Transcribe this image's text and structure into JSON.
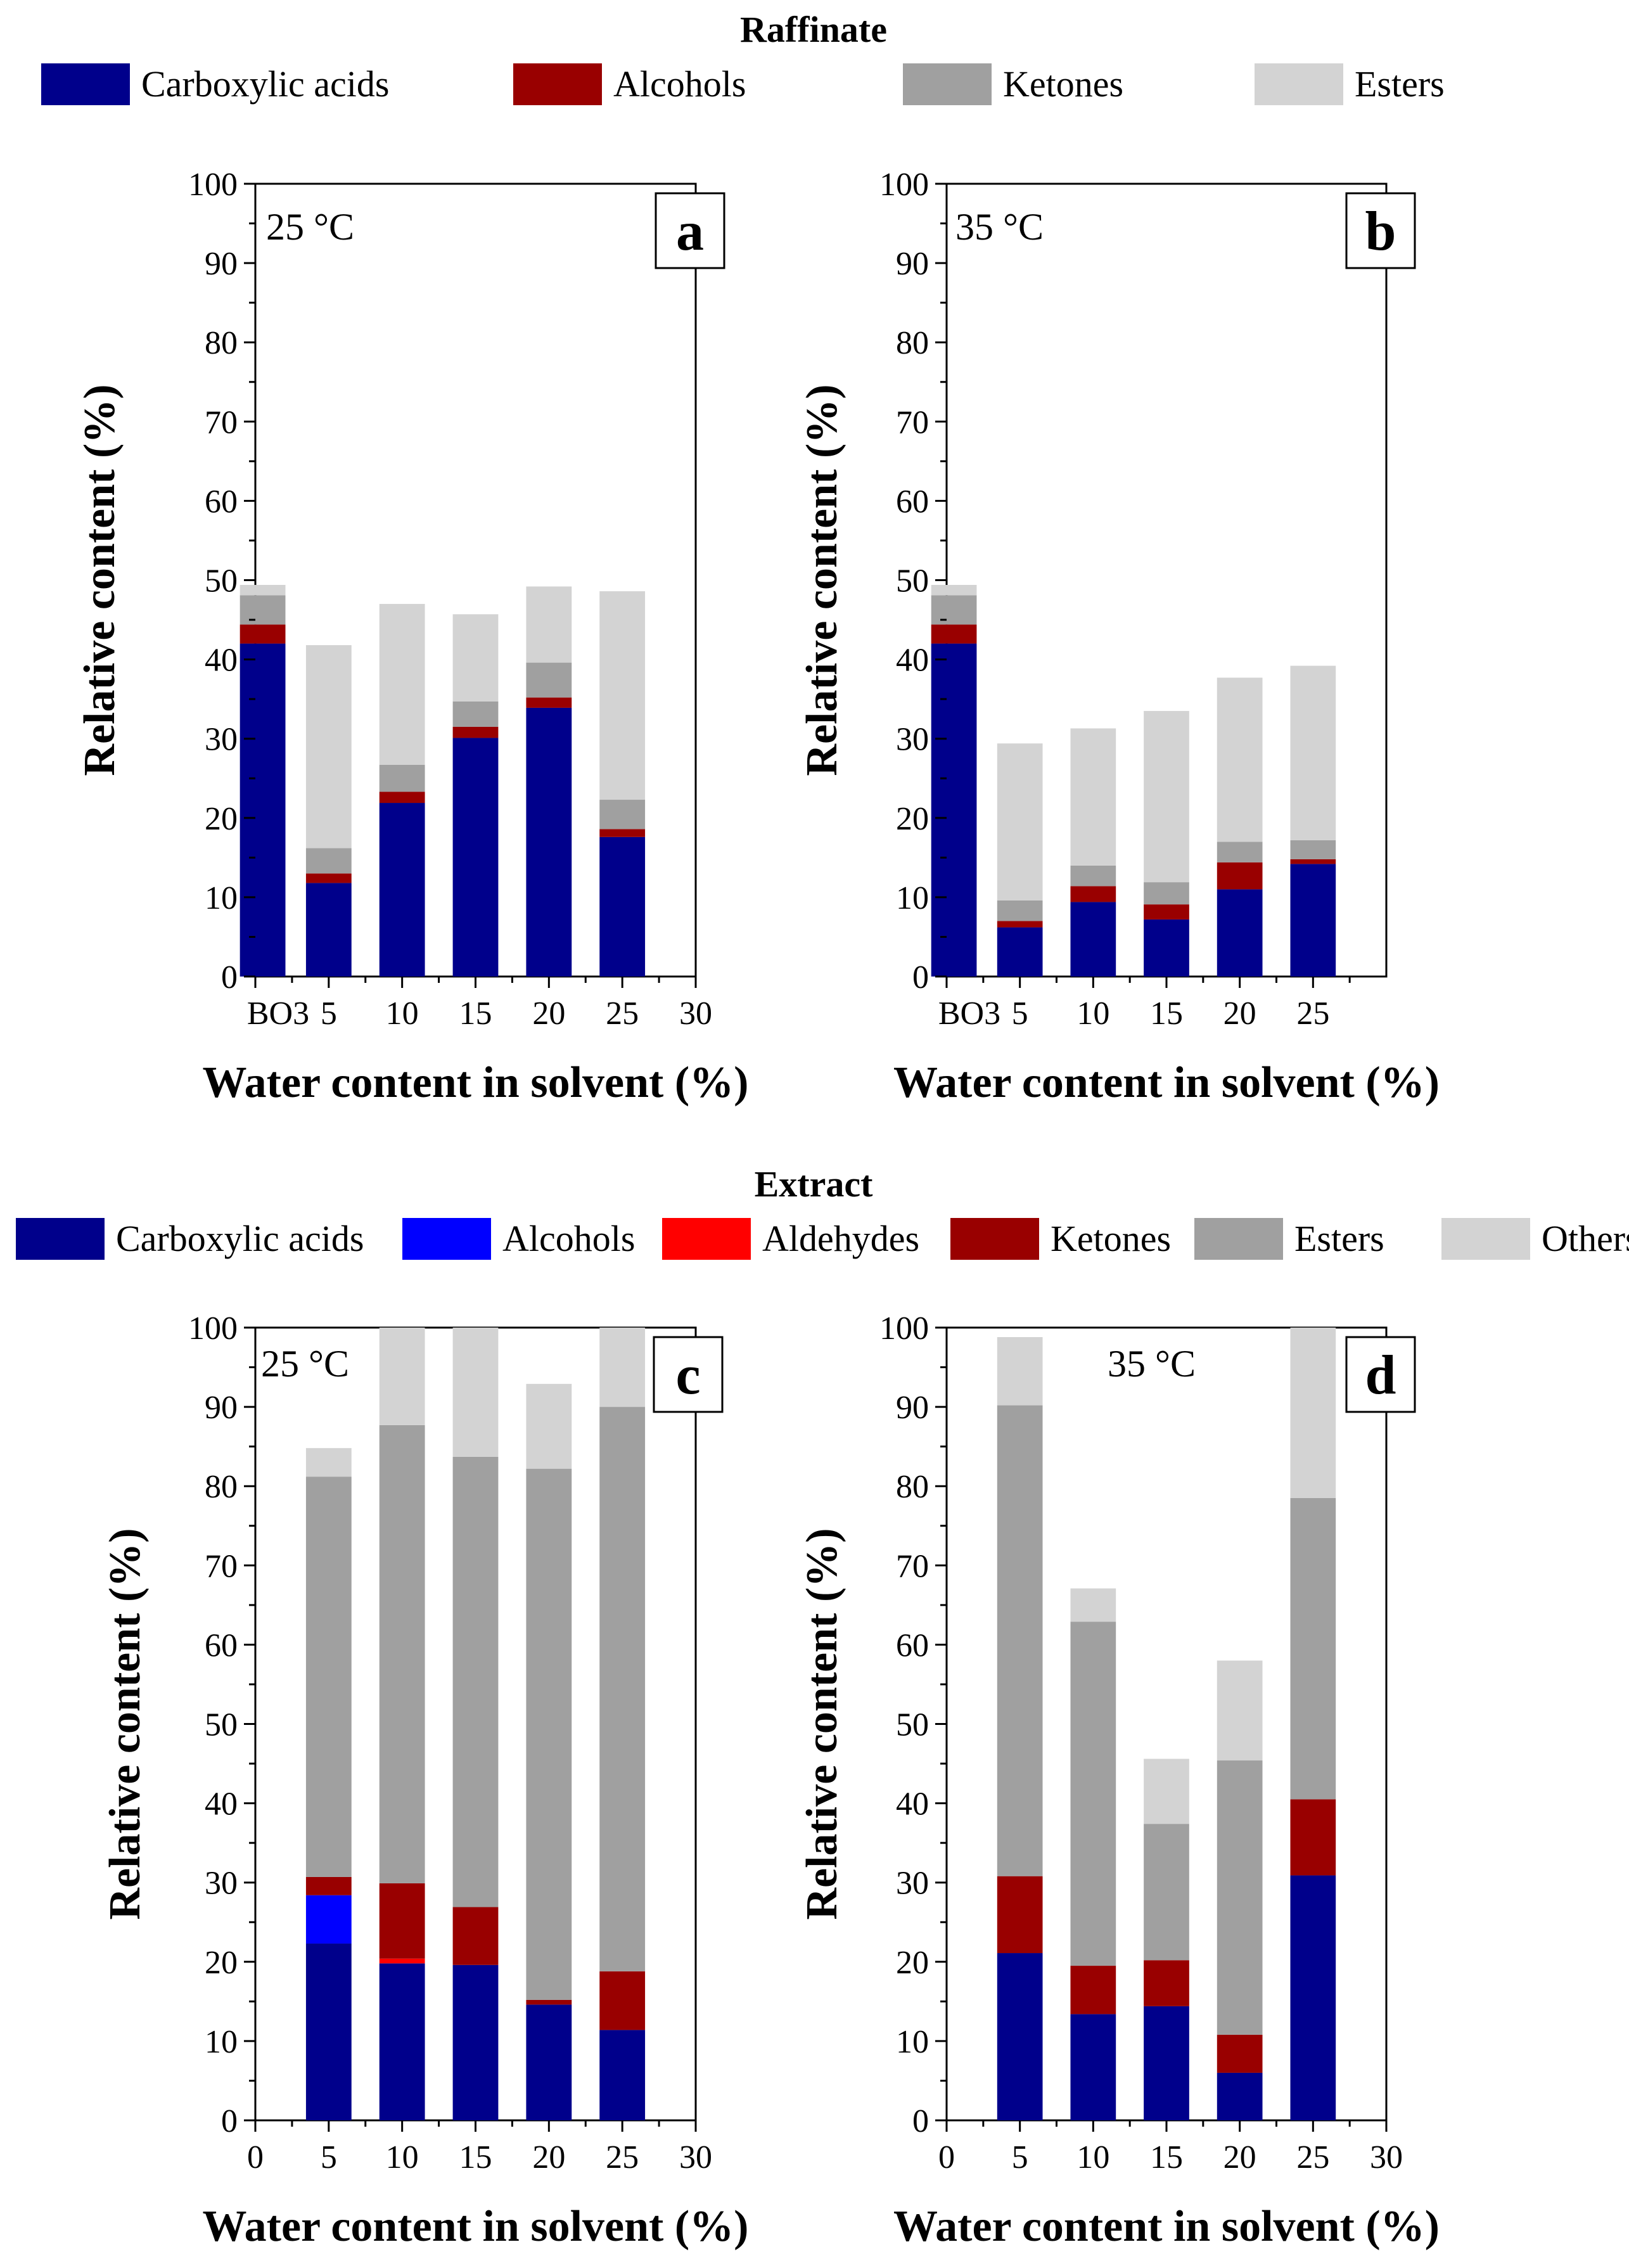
{
  "figure": {
    "raffinate_title": "Raffinate",
    "extract_title": "Extract"
  },
  "chart_data": [
    {
      "type": "bar",
      "stacked": true,
      "panel": "a",
      "group": "Raffinate",
      "annotation": "25 °C",
      "xlabel": "Water content in solvent (%)",
      "ylabel": "Relative content (%)",
      "xlim": [
        0,
        30
      ],
      "ylim": [
        0,
        100
      ],
      "categorical_first": "BO3",
      "x": [
        "BO3",
        5,
        10,
        15,
        20,
        25
      ],
      "x_positions": [
        0.5,
        5,
        10,
        15,
        20,
        25
      ],
      "xticks": [
        0,
        5,
        10,
        15,
        20,
        25,
        30
      ],
      "xtick_labels": [
        "BO3",
        "5",
        "10",
        "15",
        "20",
        "25",
        "30"
      ],
      "yticks": [
        0,
        10,
        20,
        30,
        40,
        50,
        60,
        70,
        80,
        90,
        100
      ],
      "series": [
        {
          "name": "Carboxylic acids",
          "color": "#00008B",
          "values": [
            42.0,
            11.8,
            21.9,
            30.1,
            33.9,
            17.6
          ]
        },
        {
          "name": "Alcohols",
          "color": "#990000",
          "values": [
            2.4,
            1.2,
            1.4,
            1.4,
            1.3,
            1.0
          ]
        },
        {
          "name": "Ketones",
          "color": "#A0A0A0",
          "values": [
            3.7,
            3.2,
            3.4,
            3.2,
            4.4,
            3.7
          ]
        },
        {
          "name": "Esters",
          "color": "#D3D3D3",
          "values": [
            1.3,
            25.6,
            20.3,
            11.0,
            9.6,
            26.3
          ]
        }
      ]
    },
    {
      "type": "bar",
      "stacked": true,
      "panel": "b",
      "group": "Raffinate",
      "annotation": "35 °C",
      "xlabel": "Water content in solvent (%)",
      "ylabel": "Relative content (%)",
      "xlim": [
        0,
        30
      ],
      "ylim": [
        0,
        100
      ],
      "x": [
        "BO3",
        5,
        10,
        15,
        20,
        25
      ],
      "x_positions": [
        0.5,
        5,
        10,
        15,
        20,
        25
      ],
      "xticks": [
        0,
        5,
        10,
        15,
        20,
        25
      ],
      "xtick_labels": [
        "BO3",
        "5",
        "10",
        "15",
        "20",
        "25"
      ],
      "yticks": [
        0,
        10,
        20,
        30,
        40,
        50,
        60,
        70,
        80,
        90,
        100
      ],
      "series": [
        {
          "name": "Carboxylic acids",
          "color": "#00008B",
          "values": [
            42.0,
            6.2,
            9.4,
            7.2,
            11.0,
            14.2
          ]
        },
        {
          "name": "Alcohols",
          "color": "#990000",
          "values": [
            2.4,
            0.8,
            2.0,
            1.9,
            3.4,
            0.6
          ]
        },
        {
          "name": "Ketones",
          "color": "#A0A0A0",
          "values": [
            3.7,
            2.6,
            2.6,
            2.8,
            2.6,
            2.4
          ]
        },
        {
          "name": "Esters",
          "color": "#D3D3D3",
          "values": [
            1.3,
            19.8,
            17.3,
            21.6,
            20.7,
            22.0
          ]
        }
      ]
    },
    {
      "type": "bar",
      "stacked": true,
      "panel": "c",
      "group": "Extract",
      "annotation": "25 °C",
      "xlabel": "Water content in solvent (%)",
      "ylabel": "Relative content (%)",
      "xlim": [
        0,
        30
      ],
      "ylim": [
        0,
        100
      ],
      "x": [
        5,
        10,
        15,
        20,
        25
      ],
      "xticks": [
        0,
        5,
        10,
        15,
        20,
        25,
        30
      ],
      "xtick_labels": [
        "0",
        "5",
        "10",
        "15",
        "20",
        "25",
        "30"
      ],
      "yticks": [
        0,
        10,
        20,
        30,
        40,
        50,
        60,
        70,
        80,
        90,
        100
      ],
      "series": [
        {
          "name": "Carboxylic acids",
          "color": "#00008B",
          "values": [
            22.3,
            19.8,
            19.6,
            14.6,
            11.4
          ]
        },
        {
          "name": "Alcohols",
          "color": "#0000FF",
          "values": [
            6.1,
            0.0,
            0.0,
            0.0,
            0.0
          ]
        },
        {
          "name": "Aldehydes",
          "color": "#FF0000",
          "values": [
            0.0,
            0.6,
            0.0,
            0.0,
            0.0
          ]
        },
        {
          "name": "Ketones",
          "color": "#990000",
          "values": [
            2.3,
            9.5,
            7.3,
            0.6,
            7.4
          ]
        },
        {
          "name": "Esters",
          "color": "#A0A0A0",
          "values": [
            50.5,
            57.8,
            56.8,
            67.0,
            71.2
          ]
        },
        {
          "name": "Others",
          "color": "#D3D3D3",
          "values": [
            3.6,
            12.3,
            16.3,
            10.7,
            10.0
          ]
        }
      ]
    },
    {
      "type": "bar",
      "stacked": true,
      "panel": "d",
      "group": "Extract",
      "annotation": "35 °C",
      "xlabel": "Water content in solvent (%)",
      "ylabel": "Relative content (%)",
      "xlim": [
        0,
        30
      ],
      "ylim": [
        0,
        100
      ],
      "x": [
        5,
        10,
        15,
        20,
        25
      ],
      "xticks": [
        0,
        5,
        10,
        15,
        20,
        25,
        30
      ],
      "xtick_labels": [
        "0",
        "5",
        "10",
        "15",
        "20",
        "25",
        "30"
      ],
      "yticks": [
        0,
        10,
        20,
        30,
        40,
        50,
        60,
        70,
        80,
        90,
        100
      ],
      "series": [
        {
          "name": "Carboxylic acids",
          "color": "#00008B",
          "values": [
            21.1,
            13.4,
            14.4,
            6.0,
            30.9
          ]
        },
        {
          "name": "Alcohols",
          "color": "#0000FF",
          "values": [
            0.0,
            0.0,
            0.0,
            0.0,
            0.0
          ]
        },
        {
          "name": "Aldehydes",
          "color": "#FF0000",
          "values": [
            0.0,
            0.0,
            0.0,
            0.0,
            0.0
          ]
        },
        {
          "name": "Ketones",
          "color": "#990000",
          "values": [
            9.7,
            6.1,
            5.8,
            4.8,
            9.6
          ]
        },
        {
          "name": "Esters",
          "color": "#A0A0A0",
          "values": [
            59.4,
            43.4,
            17.2,
            34.6,
            38.0
          ]
        },
        {
          "name": "Others",
          "color": "#D3D3D3",
          "values": [
            8.6,
            4.2,
            8.2,
            12.6,
            21.5
          ]
        }
      ]
    }
  ]
}
